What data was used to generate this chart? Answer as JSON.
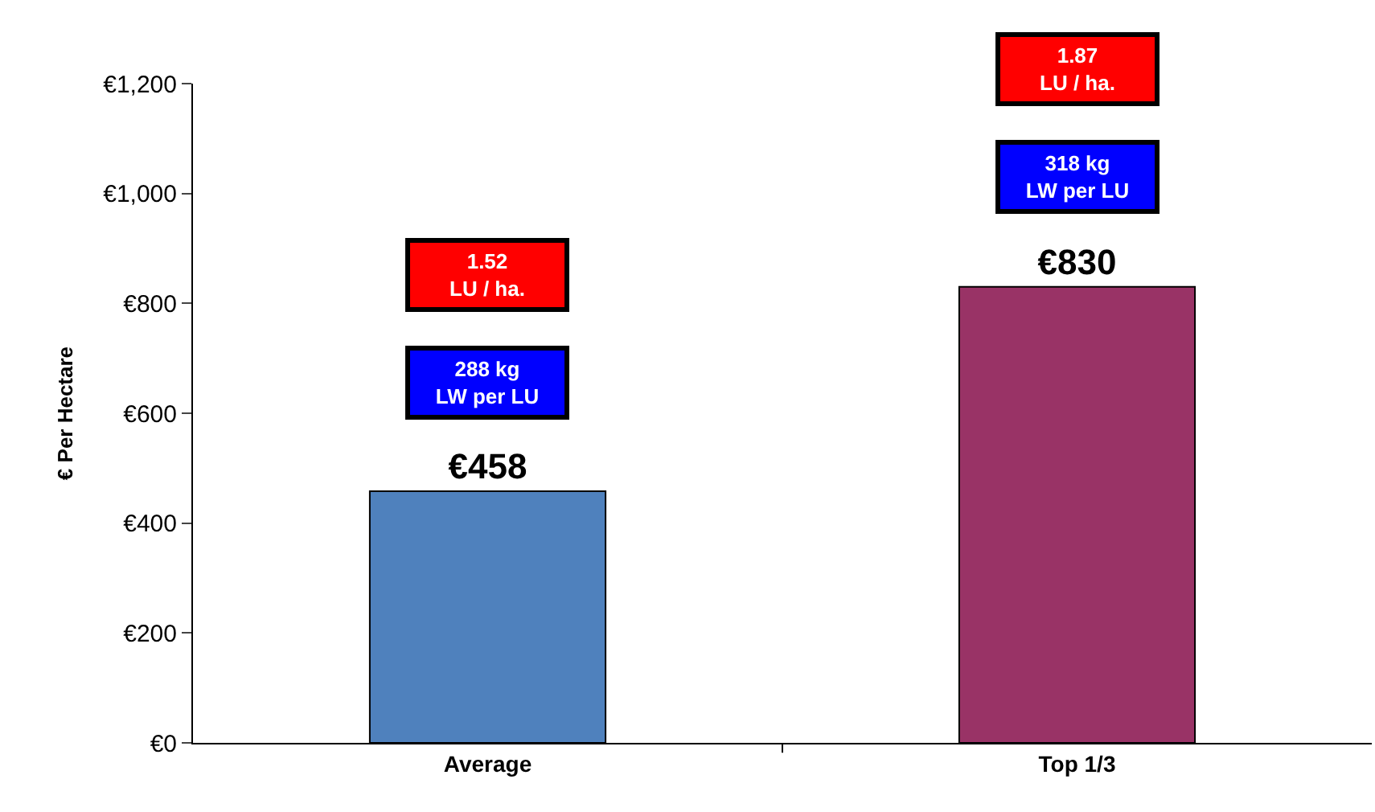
{
  "chart_data": {
    "type": "bar",
    "ylabel": "€ Per Hectare",
    "categories": [
      "Average",
      "Top 1/3"
    ],
    "values": [
      458,
      830
    ],
    "colors": [
      "#4f81bd",
      "#993366"
    ],
    "value_labels": [
      "€458",
      "€830"
    ],
    "ylim": [
      0,
      1200
    ],
    "yticks": [
      {
        "value": 0,
        "label": "€0"
      },
      {
        "value": 200,
        "label": "€200"
      },
      {
        "value": 400,
        "label": "€400"
      },
      {
        "value": 600,
        "label": "€600"
      },
      {
        "value": 800,
        "label": "€800"
      },
      {
        "value": 1000,
        "label": "€1,000"
      },
      {
        "value": 1200,
        "label": "€1,200"
      }
    ],
    "annotations": [
      "1.52\nLU / ha.",
      "288 kg\nLW per LU",
      "1.87\nLU / ha.",
      "318 kg\nLW per LU"
    ]
  }
}
